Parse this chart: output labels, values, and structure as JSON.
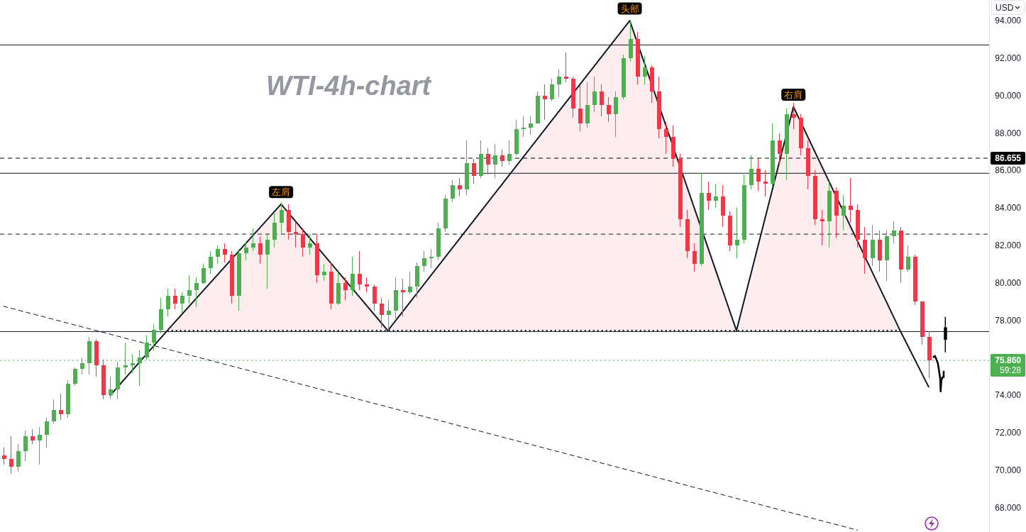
{
  "chart_data": {
    "type": "candlestick",
    "title": "WTI-4h-chart",
    "ylabel": "USD",
    "categories": [
      null,
      null,
      null,
      null,
      null,
      null,
      null,
      null,
      null,
      null,
      null,
      null,
      null,
      null,
      null,
      null,
      null,
      null,
      null,
      null,
      null,
      null,
      null,
      null,
      null,
      null,
      null,
      null,
      null,
      null,
      null,
      null,
      null,
      null,
      null,
      null,
      null,
      null,
      null,
      null,
      null,
      null,
      null,
      null,
      null,
      null,
      null,
      null,
      null,
      null,
      null,
      null,
      null,
      null,
      null,
      null,
      null,
      null,
      null,
      null,
      null,
      null,
      null,
      null,
      null,
      null,
      null,
      null,
      null,
      null,
      null,
      null,
      null,
      null,
      null,
      null,
      null,
      null,
      null,
      null,
      null,
      null,
      null,
      null,
      null,
      null,
      null,
      null,
      null,
      null,
      null,
      null,
      null,
      null,
      null,
      null,
      null,
      null,
      null,
      null,
      null,
      null,
      null,
      null,
      null,
      null,
      null,
      null,
      null,
      null,
      null,
      null,
      null,
      null,
      null,
      null,
      null,
      null,
      null,
      null,
      null,
      null,
      null,
      null,
      null,
      null,
      null,
      null,
      null,
      null,
      null,
      null,
      null,
      null,
      null,
      null,
      null,
      null,
      null
    ],
    "ohlc": [
      [
        70.8,
        71.2,
        70.3,
        70.6
      ],
      [
        70.6,
        71.8,
        69.8,
        70.2
      ],
      [
        70.2,
        71.4,
        69.9,
        71.0
      ],
      [
        71.0,
        72.1,
        70.5,
        71.8
      ],
      [
        71.8,
        72.2,
        71.4,
        71.6
      ],
      [
        71.6,
        72.3,
        70.3,
        71.9
      ],
      [
        71.9,
        72.8,
        71.2,
        72.6
      ],
      [
        72.6,
        73.8,
        72.5,
        73.2
      ],
      [
        73.2,
        74.1,
        72.7,
        73.0
      ],
      [
        73.0,
        74.8,
        72.8,
        74.6
      ],
      [
        74.6,
        75.5,
        74.5,
        75.4
      ],
      [
        75.4,
        76.0,
        75.1,
        75.7
      ],
      [
        75.7,
        77.1,
        75.1,
        76.9
      ],
      [
        76.9,
        77.0,
        75.0,
        75.6
      ],
      [
        75.6,
        75.9,
        73.8,
        74.0
      ],
      [
        74.0,
        75.0,
        73.8,
        74.3
      ],
      [
        74.3,
        75.8,
        73.8,
        75.5
      ],
      [
        75.5,
        76.8,
        75.1,
        75.6
      ],
      [
        75.6,
        76.2,
        75.2,
        75.7
      ],
      [
        75.7,
        76.4,
        74.5,
        76.0
      ],
      [
        76.0,
        77.2,
        75.9,
        76.8
      ],
      [
        76.8,
        77.8,
        76.4,
        77.5
      ],
      [
        77.5,
        79.2,
        77.3,
        78.6
      ],
      [
        78.6,
        79.7,
        78.2,
        79.3
      ],
      [
        79.3,
        79.7,
        78.6,
        78.9
      ],
      [
        78.9,
        79.5,
        78.4,
        79.3
      ],
      [
        79.3,
        80.4,
        78.9,
        79.6
      ],
      [
        79.6,
        80.3,
        78.7,
        80.0
      ],
      [
        80.0,
        81.0,
        79.9,
        80.8
      ],
      [
        80.8,
        81.7,
        80.5,
        81.4
      ],
      [
        81.4,
        82.0,
        81.0,
        81.8
      ],
      [
        81.8,
        82.1,
        81.1,
        81.5
      ],
      [
        81.5,
        81.7,
        78.9,
        79.3
      ],
      [
        79.3,
        81.8,
        78.5,
        81.6
      ],
      [
        81.6,
        82.2,
        81.2,
        81.9
      ],
      [
        81.9,
        82.9,
        81.7,
        82.1
      ],
      [
        82.1,
        82.5,
        81.0,
        81.5
      ],
      [
        81.5,
        82.6,
        79.7,
        82.3
      ],
      [
        82.3,
        83.7,
        81.9,
        83.2
      ],
      [
        83.2,
        84.3,
        82.6,
        83.9
      ],
      [
        83.9,
        84.2,
        82.3,
        82.7
      ],
      [
        82.7,
        83.2,
        81.9,
        82.6
      ],
      [
        82.6,
        82.9,
        81.4,
        81.9
      ],
      [
        81.9,
        82.6,
        81.5,
        82.1
      ],
      [
        82.1,
        82.6,
        80.0,
        80.4
      ],
      [
        80.4,
        81.0,
        80.1,
        80.6
      ],
      [
        80.6,
        81.1,
        78.6,
        78.9
      ],
      [
        78.9,
        80.6,
        78.8,
        80.0
      ],
      [
        80.0,
        80.3,
        79.1,
        79.6
      ],
      [
        79.6,
        81.4,
        79.3,
        80.5
      ],
      [
        80.5,
        81.7,
        79.6,
        79.9
      ],
      [
        79.9,
        80.3,
        79.5,
        79.8
      ],
      [
        79.8,
        79.9,
        78.5,
        78.9
      ],
      [
        78.9,
        79.2,
        77.6,
        78.3
      ],
      [
        78.3,
        79.1,
        77.4,
        78.5
      ],
      [
        78.5,
        80.3,
        78.1,
        79.6
      ],
      [
        79.6,
        80.2,
        78.2,
        79.5
      ],
      [
        79.5,
        80.6,
        79.4,
        79.8
      ],
      [
        79.8,
        81.1,
        79.2,
        80.9
      ],
      [
        80.9,
        81.7,
        80.6,
        81.3
      ],
      [
        81.3,
        81.8,
        80.8,
        81.4
      ],
      [
        81.4,
        83.2,
        81.2,
        82.9
      ],
      [
        82.9,
        84.7,
        82.7,
        84.5
      ],
      [
        84.5,
        85.5,
        84.3,
        85.2
      ],
      [
        85.2,
        85.6,
        84.6,
        85.0
      ],
      [
        85.0,
        87.6,
        84.7,
        86.4
      ],
      [
        86.4,
        86.6,
        85.3,
        85.7
      ],
      [
        85.7,
        87.6,
        85.6,
        86.9
      ],
      [
        86.9,
        87.2,
        85.8,
        86.3
      ],
      [
        86.3,
        87.4,
        85.6,
        86.8
      ],
      [
        86.8,
        87.1,
        86.2,
        86.5
      ],
      [
        86.5,
        87.6,
        86.3,
        86.9
      ],
      [
        86.9,
        88.7,
        86.8,
        88.2
      ],
      [
        88.2,
        88.9,
        87.8,
        88.3
      ],
      [
        88.3,
        88.9,
        87.9,
        88.5
      ],
      [
        88.5,
        90.2,
        88.5,
        90.0
      ],
      [
        90.0,
        90.6,
        88.7,
        89.8
      ],
      [
        89.8,
        90.9,
        89.7,
        90.6
      ],
      [
        90.6,
        91.4,
        89.9,
        91.0
      ],
      [
        91.0,
        92.3,
        90.7,
        90.9
      ],
      [
        90.9,
        91.0,
        88.8,
        89.3
      ],
      [
        89.3,
        90.5,
        88.1,
        88.5
      ],
      [
        88.5,
        90.7,
        88.3,
        89.5
      ],
      [
        89.5,
        91.0,
        89.1,
        90.2
      ],
      [
        90.2,
        90.6,
        88.9,
        89.5
      ],
      [
        89.5,
        89.9,
        88.6,
        89.0
      ],
      [
        89.0,
        90.2,
        87.8,
        89.9
      ],
      [
        89.9,
        92.2,
        89.8,
        92.0
      ],
      [
        92.0,
        94.0,
        91.8,
        93.0
      ],
      [
        93.0,
        93.4,
        90.6,
        91.0
      ],
      [
        91.0,
        92.1,
        90.6,
        91.5
      ],
      [
        91.5,
        91.6,
        89.6,
        90.2
      ],
      [
        90.2,
        91.0,
        87.7,
        88.2
      ],
      [
        88.2,
        88.6,
        86.9,
        87.8
      ],
      [
        87.8,
        88.4,
        86.2,
        86.6
      ],
      [
        86.6,
        86.9,
        83.0,
        83.4
      ],
      [
        83.4,
        83.9,
        81.3,
        81.7
      ],
      [
        81.7,
        82.1,
        80.6,
        81.0
      ],
      [
        81.0,
        85.9,
        80.9,
        84.8
      ],
      [
        84.8,
        85.4,
        83.9,
        84.4
      ],
      [
        84.4,
        85.3,
        84.0,
        84.6
      ],
      [
        84.6,
        85.2,
        83.0,
        83.6
      ],
      [
        83.6,
        83.8,
        81.7,
        82.0
      ],
      [
        82.0,
        84.0,
        81.3,
        82.3
      ],
      [
        82.3,
        85.8,
        82.1,
        85.2
      ],
      [
        85.2,
        86.8,
        85.0,
        86.1
      ],
      [
        86.1,
        86.6,
        84.9,
        85.4
      ],
      [
        85.4,
        86.0,
        84.6,
        85.3
      ],
      [
        85.3,
        88.5,
        85.1,
        87.6
      ],
      [
        87.6,
        88.0,
        86.3,
        86.9
      ],
      [
        86.9,
        89.3,
        85.5,
        89.0
      ],
      [
        89.0,
        89.6,
        88.2,
        88.8
      ],
      [
        88.8,
        89.0,
        86.8,
        87.2
      ],
      [
        87.2,
        87.6,
        85.0,
        85.7
      ],
      [
        85.7,
        86.0,
        83.1,
        83.4
      ],
      [
        83.4,
        83.9,
        82.0,
        83.3
      ],
      [
        83.3,
        85.4,
        81.9,
        84.9
      ],
      [
        84.9,
        85.1,
        82.4,
        83.6
      ],
      [
        83.6,
        84.7,
        82.8,
        84.1
      ],
      [
        84.1,
        85.6,
        83.2,
        83.9
      ],
      [
        83.9,
        84.2,
        81.9,
        82.3
      ],
      [
        82.3,
        83.0,
        80.5,
        81.3
      ],
      [
        81.3,
        83.1,
        80.9,
        82.3
      ],
      [
        82.3,
        82.8,
        80.6,
        81.2
      ],
      [
        81.2,
        82.8,
        80.1,
        82.5
      ],
      [
        82.5,
        83.3,
        82.1,
        82.8
      ],
      [
        82.8,
        83.0,
        80.0,
        80.7
      ],
      [
        80.7,
        82.0,
        80.6,
        81.4
      ],
      [
        81.4,
        81.5,
        78.8,
        79.0
      ],
      [
        79.0,
        79.0,
        76.7,
        77.1
      ],
      [
        77.1,
        77.4,
        74.9,
        75.86
      ],
      null,
      null,
      null,
      null,
      null,
      null,
      null,
      null
    ],
    "colors": [
      "#f23645",
      "#f23645",
      "#4caf50",
      "#4caf50",
      "#f23645",
      "#4caf50",
      "#4caf50",
      "#4caf50",
      "#f23645",
      "#4caf50",
      "#4caf50",
      "#4caf50",
      "#4caf50",
      "#f23645",
      "#f23645",
      "#4caf50",
      "#4caf50",
      "#4caf50",
      "#4caf50",
      "#4caf50",
      "#4caf50",
      "#4caf50",
      "#4caf50",
      "#4caf50",
      "#f23645",
      "#4caf50",
      "#4caf50",
      "#4caf50",
      "#4caf50",
      "#4caf50",
      "#4caf50",
      "#f23645",
      "#f23645",
      "#4caf50",
      "#4caf50",
      "#4caf50",
      "#f23645",
      "#4caf50",
      "#4caf50",
      "#4caf50",
      "#f23645",
      "#f23645",
      "#f23645",
      "#4caf50",
      "#f23645",
      "#4caf50",
      "#f23645",
      "#4caf50",
      "#f23645",
      "#4caf50",
      "#f23645",
      "#f23645",
      "#f23645",
      "#f23645",
      "#4caf50",
      "#4caf50",
      "#f23645",
      "#4caf50",
      "#4caf50",
      "#4caf50",
      "#4caf50",
      "#4caf50",
      "#4caf50",
      "#4caf50",
      "#f23645",
      "#4caf50",
      "#f23645",
      "#4caf50",
      "#f23645",
      "#4caf50",
      "#f23645",
      "#4caf50",
      "#4caf50",
      "#4caf50",
      "#4caf50",
      "#4caf50",
      "#f23645",
      "#4caf50",
      "#4caf50",
      "#f23645",
      "#f23645",
      "#f23645",
      "#4caf50",
      "#4caf50",
      "#f23645",
      "#f23645",
      "#4caf50",
      "#4caf50",
      "#4caf50",
      "#f23645",
      "#4caf50",
      "#f23645",
      "#f23645",
      "#f23645",
      "#f23645",
      "#f23645",
      "#f23645",
      "#f23645",
      "#4caf50",
      "#f23645",
      "#4caf50",
      "#f23645",
      "#f23645",
      "#4caf50",
      "#4caf50",
      "#4caf50",
      "#f23645",
      "#f23645",
      "#4caf50",
      "#f23645",
      "#4caf50",
      "#f23645",
      "#f23645",
      "#f23645",
      "#f23645",
      "#f23645",
      "#4caf50",
      "#f23645",
      "#4caf50",
      "#f23645",
      "#f23645",
      "#f23645",
      "#4caf50",
      "#f23645",
      "#4caf50",
      "#4caf50",
      "#f23645",
      "#4caf50",
      "#f23645",
      "#f23645",
      "#f23645",
      null,
      null,
      null,
      null,
      null,
      null,
      null,
      null
    ],
    "ylim": [
      66.7,
      95.1
    ],
    "yticks": [
      {
        "value": 68,
        "label": "68.000"
      },
      {
        "value": 70,
        "label": "70.000"
      },
      {
        "value": 72,
        "label": "72.000"
      },
      {
        "value": 74,
        "label": "74.000"
      },
      {
        "value": 78,
        "label": "78.000"
      },
      {
        "value": 80,
        "label": "80.000"
      },
      {
        "value": 82,
        "label": "82.000"
      },
      {
        "value": 84,
        "label": "84.000"
      },
      {
        "value": 86,
        "label": "86.000"
      },
      {
        "value": 88,
        "label": "88.000"
      },
      {
        "value": 90,
        "label": "90.000"
      },
      {
        "value": 92,
        "label": "92.000"
      },
      {
        "value": 94,
        "label": "94.000"
      }
    ],
    "tick_labels": "y",
    "series": [
      {
        "type": "line",
        "color": "#131722",
        "values": [
          null,
          null,
          null,
          null,
          null,
          null,
          null,
          null,
          null,
          null,
          null,
          null,
          null,
          null,
          null,
          74.0,
          null,
          null,
          null,
          null,
          null,
          null,
          null,
          77.45,
          null,
          null,
          null,
          null,
          null,
          null,
          null,
          null,
          null,
          null,
          null,
          null,
          null,
          null,
          null,
          84.2,
          null,
          null,
          null,
          null,
          null,
          null,
          null,
          null,
          null,
          null,
          null,
          null,
          null,
          null,
          77.45,
          null,
          null,
          null,
          null,
          null,
          null,
          null,
          null,
          null,
          null,
          null,
          null,
          null,
          null,
          null,
          null,
          null,
          null,
          null,
          null,
          null,
          null,
          null,
          null,
          null,
          null,
          null,
          null,
          null,
          null,
          null,
          null,
          null,
          94.0,
          null,
          null,
          null,
          null,
          null,
          null,
          null,
          null,
          null,
          null,
          null,
          null,
          null,
          null,
          77.45,
          null,
          null,
          null,
          null,
          null,
          null,
          null,
          89.4,
          null,
          null,
          null,
          null,
          null,
          null,
          null,
          null,
          null,
          null,
          null,
          null,
          null,
          null,
          77.45,
          null,
          null,
          null,
          74.45,
          null,
          null,
          null,
          null,
          null,
          null,
          null,
          null
        ],
        "lower": [
          null,
          null,
          null,
          null,
          null,
          null,
          null,
          null,
          null,
          null,
          null,
          null,
          null,
          null,
          null,
          null,
          null,
          null,
          null,
          null,
          null,
          null,
          null,
          77.45,
          null,
          null,
          null,
          null,
          null,
          null,
          null,
          null,
          null,
          null,
          null,
          null,
          null,
          null,
          null,
          77.45,
          null,
          null,
          null,
          null,
          null,
          null,
          null,
          null,
          null,
          null,
          null,
          null,
          null,
          null,
          77.45,
          null,
          null,
          null,
          null,
          null,
          null,
          null,
          null,
          null,
          null,
          null,
          null,
          null,
          null,
          null,
          null,
          null,
          null,
          null,
          null,
          null,
          null,
          null,
          null,
          null,
          null,
          null,
          null,
          null,
          null,
          null,
          null,
          null,
          77.45,
          null,
          null,
          null,
          null,
          null,
          null,
          null,
          null,
          null,
          null,
          null,
          null,
          null,
          null,
          77.45,
          null,
          null,
          null,
          null,
          null,
          null,
          null,
          77.45,
          null,
          null,
          null,
          null,
          null,
          null,
          null,
          null,
          null,
          null,
          null,
          null,
          null,
          null,
          77.45,
          null,
          null,
          null,
          null,
          null,
          null,
          null,
          null,
          null,
          null,
          null,
          null
        ],
        "upper": [
          null,
          null,
          null,
          null,
          null,
          null,
          null,
          null,
          null,
          null,
          null,
          null,
          null,
          null,
          null,
          null,
          null,
          null,
          null,
          null,
          null,
          null,
          null,
          77.45,
          null,
          null,
          null,
          null,
          null,
          null,
          null,
          null,
          null,
          null,
          null,
          null,
          null,
          null,
          null,
          84.2,
          null,
          null,
          null,
          null,
          null,
          null,
          null,
          null,
          null,
          null,
          null,
          null,
          null,
          null,
          77.45,
          null,
          null,
          null,
          null,
          null,
          null,
          null,
          null,
          null,
          null,
          null,
          null,
          null,
          null,
          null,
          null,
          null,
          null,
          null,
          null,
          null,
          null,
          null,
          null,
          null,
          null,
          null,
          null,
          null,
          null,
          null,
          null,
          null,
          94.0,
          null,
          null,
          null,
          null,
          null,
          null,
          null,
          null,
          null,
          null,
          null,
          null,
          null,
          null,
          77.45,
          null,
          null,
          null,
          null,
          null,
          null,
          null,
          89.4,
          null,
          null,
          null,
          null,
          null,
          null,
          null,
          null,
          null,
          null,
          null,
          null,
          null,
          null,
          77.45,
          null,
          null,
          null,
          null,
          null,
          null,
          null,
          null,
          null,
          null,
          null,
          null
        ]
      },
      {
        "type": "line",
        "color": "#131722",
        "line_style": "dotted",
        "values": [
          null,
          null,
          null,
          null,
          null,
          null,
          null,
          null,
          null,
          null,
          null,
          null,
          null,
          null,
          null,
          null,
          null,
          null,
          null,
          null,
          null,
          null,
          null,
          77.45,
          null,
          null,
          null,
          null,
          null,
          null,
          null,
          null,
          null,
          null,
          null,
          null,
          null,
          null,
          null,
          null,
          null,
          null,
          null,
          null,
          null,
          null,
          null,
          null,
          null,
          null,
          null,
          null,
          null,
          null,
          null,
          null,
          null,
          null,
          null,
          null,
          null,
          null,
          null,
          null,
          null,
          null,
          null,
          null,
          null,
          null,
          null,
          null,
          null,
          null,
          null,
          null,
          null,
          null,
          null,
          null,
          null,
          null,
          null,
          null,
          null,
          null,
          null,
          null,
          null,
          null,
          null,
          null,
          null,
          null,
          null,
          null,
          null,
          null,
          null,
          null,
          null,
          null,
          null,
          null,
          null,
          null,
          null,
          null,
          null,
          null,
          null,
          null,
          null,
          null,
          null,
          null,
          null,
          null,
          null,
          null,
          null,
          null,
          null,
          null,
          null,
          null,
          77.45,
          null,
          null,
          null,
          null,
          null,
          null,
          null,
          null,
          null,
          null,
          null,
          null
        ]
      },
      {
        "type": "line",
        "color": "#131722",
        "line_style": "dashed",
        "values": [
          78.75,
          null,
          null,
          null,
          null,
          null,
          null,
          null,
          null,
          null,
          null,
          null,
          null,
          null,
          null,
          null,
          null,
          null,
          null,
          null,
          null,
          null,
          null,
          null,
          null,
          null,
          null,
          null,
          null,
          null,
          null,
          null,
          null,
          null,
          null,
          null,
          null,
          null,
          null,
          null,
          null,
          null,
          null,
          null,
          null,
          null,
          null,
          null,
          null,
          null,
          null,
          null,
          null,
          null,
          null,
          null,
          null,
          null,
          null,
          null,
          null,
          null,
          null,
          null,
          null,
          null,
          null,
          null,
          null,
          null,
          null,
          null,
          null,
          null,
          null,
          null,
          null,
          null,
          null,
          null,
          null,
          null,
          null,
          null,
          null,
          null,
          null,
          null,
          null,
          null,
          null,
          null,
          null,
          null,
          null,
          null,
          null,
          null,
          null,
          null,
          null,
          null,
          null,
          null,
          null,
          null,
          null,
          null,
          null,
          null,
          null,
          null,
          null,
          null,
          null,
          null,
          null,
          null,
          null,
          null,
          66.8,
          null,
          null,
          null,
          null,
          null,
          null,
          null,
          null,
          null,
          null,
          null,
          null,
          null,
          null,
          null,
          null,
          null,
          null
        ]
      }
    ],
    "ref_lines": [
      {
        "axis": "y",
        "value": 92.7,
        "color": "#131722",
        "line_style": "solid"
      },
      {
        "axis": "y",
        "value": 86.655,
        "label": "86.655",
        "color": "#000000",
        "line_style": "dashed"
      },
      {
        "axis": "y",
        "value": 85.85,
        "color": "#131722",
        "line_style": "solid"
      },
      {
        "axis": "y",
        "value": 82.6,
        "color": "#131722",
        "line_style": "dashed"
      },
      {
        "axis": "y",
        "value": 77.4,
        "color": "#131722",
        "line_style": "solid"
      },
      {
        "axis": "y",
        "value": 75.86,
        "label": "75.860\n59:28",
        "color": "#4caf50",
        "line_style": "dotted"
      }
    ],
    "annotations": [
      {
        "text": "左肩",
        "y": 84.2
      },
      {
        "text": "头部",
        "y": 94.0
      },
      {
        "text": "右肩",
        "y": 89.4
      }
    ]
  }
}
